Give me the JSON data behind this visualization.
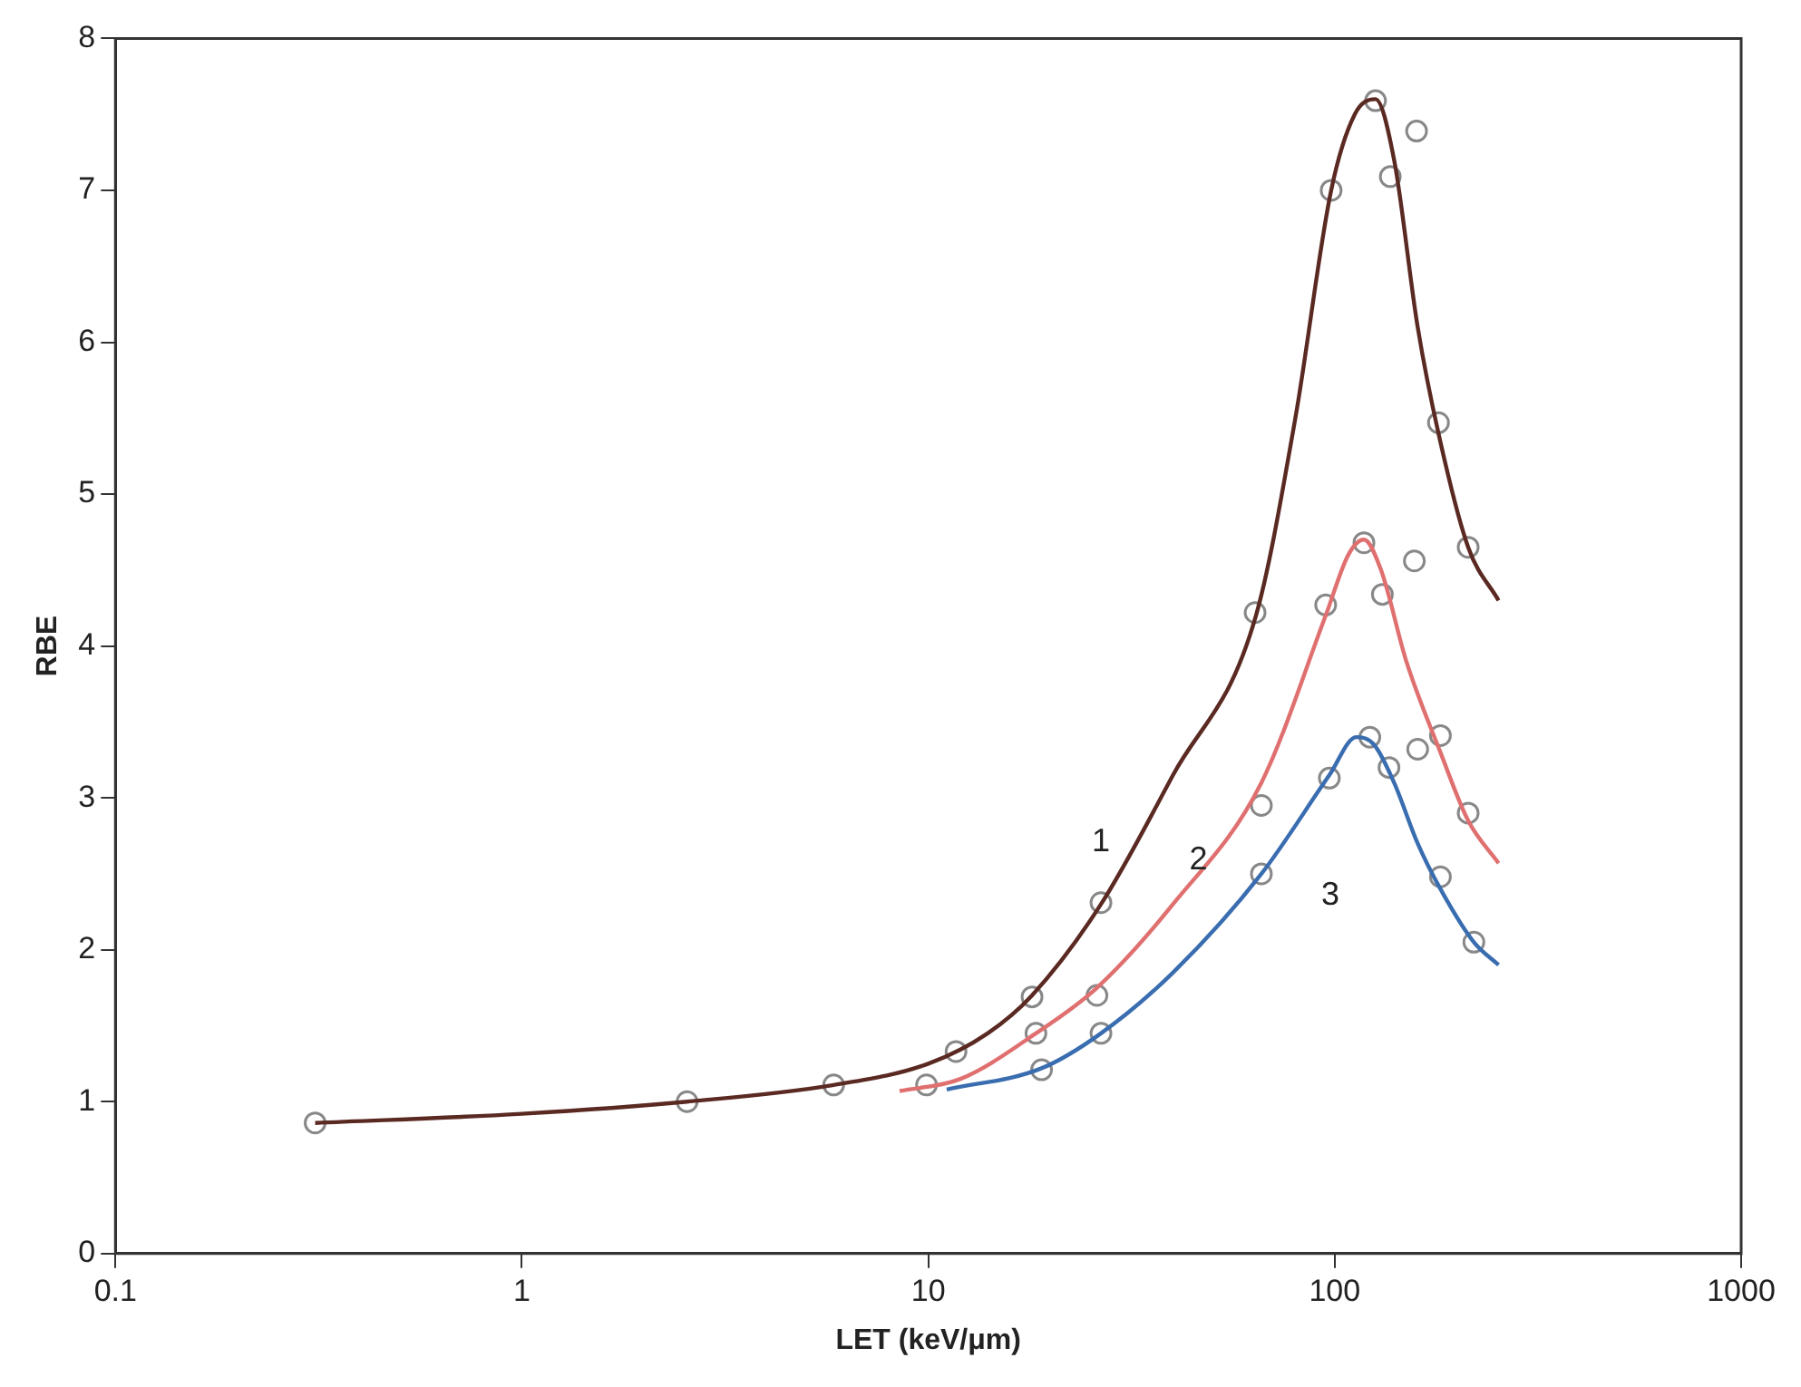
{
  "chart_data": {
    "type": "line",
    "xlabel": "LET (keV/μm)",
    "ylabel": "RBE",
    "log": "x",
    "xlim": [
      0.1,
      1000
    ],
    "xticks": [
      0.1,
      1,
      10,
      100,
      1000
    ],
    "ylim": [
      0,
      8
    ],
    "yticks": [
      0,
      1,
      2,
      3,
      4,
      5,
      6,
      7,
      8
    ],
    "grid": false,
    "legend": false,
    "line_style": "solid",
    "series": [
      {
        "name": "1",
        "color": "#5a2a22",
        "marker": "none",
        "x": [
          0.31,
          1,
          2.55,
          5.85,
          10,
          14,
          18,
          26.6,
          40,
          64,
          80,
          98,
          112,
          126,
          140,
          160,
          180,
          213,
          253
        ],
        "values": [
          0.86,
          0.92,
          1.0,
          1.11,
          1.25,
          1.45,
          1.7,
          2.3,
          3.15,
          4.2,
          5.5,
          7.0,
          7.5,
          7.6,
          7.2,
          6.1,
          5.4,
          4.65,
          4.3
        ]
      },
      {
        "name": "2",
        "color": "#e07070",
        "marker": "none",
        "x": [
          8.5,
          12,
          18.4,
          26,
          40,
          66,
          95,
          108,
          118,
          130,
          150,
          182,
          213,
          253
        ],
        "values": [
          1.07,
          1.15,
          1.45,
          1.75,
          2.3,
          3.1,
          4.2,
          4.6,
          4.7,
          4.5,
          3.9,
          3.3,
          2.85,
          2.57
        ]
      },
      {
        "name": "3",
        "color": "#3a6db0",
        "marker": "none",
        "x": [
          11.1,
          19,
          26.6,
          40,
          66,
          97,
          113,
          125,
          140,
          160,
          182,
          220,
          253
        ],
        "values": [
          1.08,
          1.22,
          1.45,
          1.85,
          2.5,
          3.15,
          3.4,
          3.35,
          3.1,
          2.7,
          2.4,
          2.05,
          1.9
        ]
      },
      {
        "type": "scatter",
        "color": "#888888",
        "marker": "circle",
        "x": [
          0.31,
          2.55,
          5.85,
          11.7,
          18.0,
          26.6,
          63.7,
          98,
          126,
          137,
          159,
          180,
          213
        ],
        "values": [
          0.86,
          1.0,
          1.11,
          1.33,
          1.69,
          2.31,
          4.22,
          7.0,
          7.59,
          7.09,
          7.39,
          5.47,
          4.65
        ]
      },
      {
        "type": "scatter",
        "color": "#888888",
        "marker": "circle",
        "x": [
          9.9,
          18.4,
          26,
          66,
          95,
          118,
          131,
          157,
          182,
          213
        ],
        "values": [
          1.11,
          1.45,
          1.7,
          2.95,
          4.27,
          4.68,
          4.34,
          4.56,
          3.41,
          2.9
        ]
      },
      {
        "type": "scatter",
        "color": "#888888",
        "marker": "circle",
        "x": [
          19,
          26.6,
          66,
          97,
          122,
          136,
          160,
          182,
          220
        ],
        "values": [
          1.21,
          1.45,
          2.5,
          3.13,
          3.4,
          3.2,
          3.32,
          2.48,
          2.05
        ]
      }
    ]
  }
}
